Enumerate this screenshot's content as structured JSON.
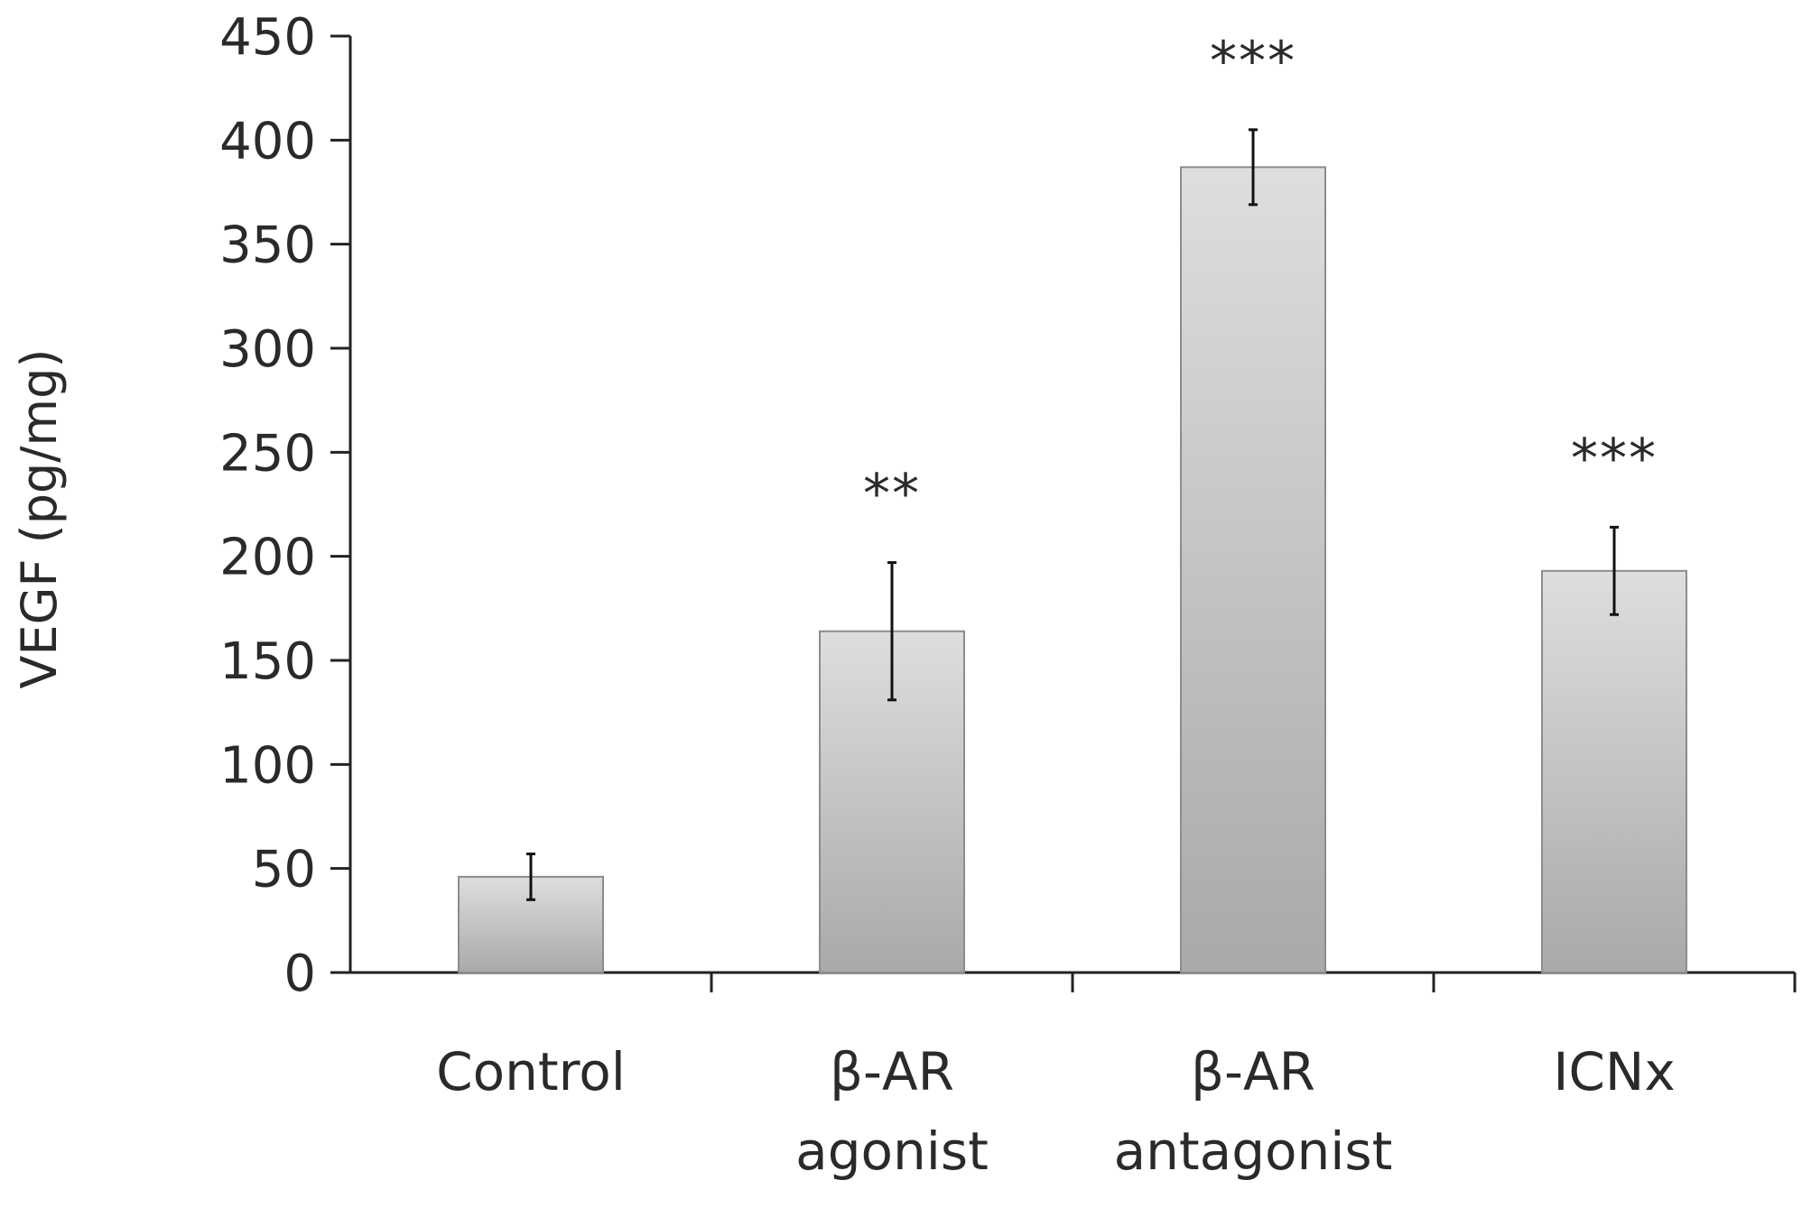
{
  "chart_data": {
    "type": "bar",
    "ylabel": "VEGF (pg/mg)",
    "xlabel": "",
    "ylim": [
      0,
      450
    ],
    "yticks": [
      0,
      50,
      100,
      150,
      200,
      250,
      300,
      350,
      400,
      450
    ],
    "categories": [
      {
        "lines": [
          "Control"
        ]
      },
      {
        "lines": [
          "β-AR",
          "agonist"
        ]
      },
      {
        "lines": [
          "β-AR",
          "antagonist"
        ]
      },
      {
        "lines": [
          "ICNx"
        ]
      }
    ],
    "values": [
      46,
      164,
      387,
      193
    ],
    "error": [
      11,
      33,
      18,
      21
    ],
    "annotations": [
      "",
      "**",
      "***",
      "***"
    ],
    "grid": false,
    "legend": "none",
    "colors": {
      "bar_top": "#dedede",
      "bar_bottom": "#a9a9a9",
      "bar_stroke": "#8c8c8c",
      "axis": "#222222",
      "error_bar": "#111111",
      "text": "#2a2a2a"
    }
  }
}
